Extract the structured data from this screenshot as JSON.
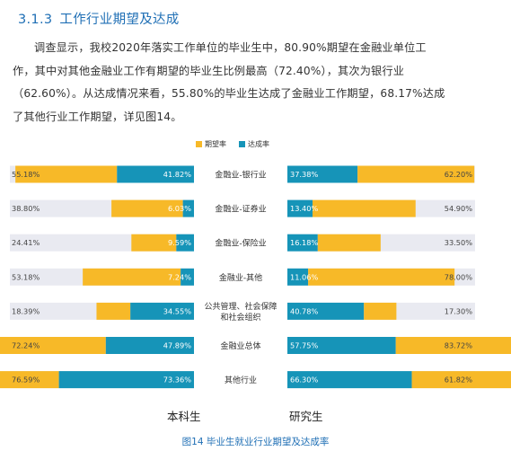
{
  "section": {
    "number": "3.1.3",
    "title": "工作行业期望及达成"
  },
  "paragraph": [
    "调查显示，我校2020年落实工作单位的毕业生中，80.90%期望在金融业单位工",
    "作，其中对其他金融业工作有期望的毕业生比例最高（72.40%），其次为银行业",
    "（62.60%）。从达成情况来看，55.80%的毕业生达成了金融业工作期望，68.17%达成",
    "了其他行业工作期望，详见图14。"
  ],
  "colors": {
    "expect": "#f7b928",
    "achieve": "#1694b8",
    "track": "#e9eaf1",
    "accent": "#1f6fb5"
  },
  "chart_data": {
    "type": "bar",
    "title": "图14 毕业生就业行业期望及达成率",
    "legend": [
      "期望率",
      "达成率"
    ],
    "legend_position": "top-center",
    "categories": [
      "金融业-银行业",
      "金融业-证券业",
      "金融业-保险业",
      "金融业-其他",
      "公共管理、社会保障和社会组织",
      "金融业总体",
      "其他行业"
    ],
    "category_lines": [
      [
        "金融业-银行业"
      ],
      [
        "金融业-证券业"
      ],
      [
        "金融业-保险业"
      ],
      [
        "金融业-其他"
      ],
      [
        "公共管理、社会保障",
        "和社会组织"
      ],
      [
        "金融业总体"
      ],
      [
        "其他行业"
      ]
    ],
    "groups": [
      {
        "name": "本科生",
        "series": [
          {
            "name": "期望率",
            "values": [
              55.18,
              38.8,
              24.41,
              53.18,
              18.39,
              72.24,
              76.59
            ],
            "labels": [
              "55.18%",
              "38.80%",
              "24.41%",
              "53.18%",
              "18.39%",
              "72.24%",
              "76.59%"
            ]
          },
          {
            "name": "达成率",
            "values": [
              41.82,
              6.03,
              9.59,
              7.24,
              34.55,
              47.89,
              73.36
            ],
            "labels": [
              "41.82%",
              "6.03%",
              "9.59%",
              "7.24%",
              "34.55%",
              "47.89%",
              "73.36%"
            ]
          }
        ]
      },
      {
        "name": "研究生",
        "series": [
          {
            "name": "期望率",
            "values": [
              62.2,
              54.9,
              33.5,
              78.0,
              17.3,
              83.72,
              61.82
            ],
            "labels": [
              "62.20%",
              "54.90%",
              "33.50%",
              "78.00%",
              "17.30%",
              "83.72%",
              "61.82%"
            ]
          },
          {
            "name": "达成率",
            "values": [
              37.38,
              13.4,
              16.18,
              11.06,
              40.78,
              57.75,
              66.3
            ],
            "labels": [
              "37.38%",
              "13.40%",
              "16.18%",
              "11.06%",
              "40.78%",
              "57.75%",
              "66.30%"
            ]
          }
        ]
      }
    ],
    "xlim": [
      0,
      100
    ]
  }
}
